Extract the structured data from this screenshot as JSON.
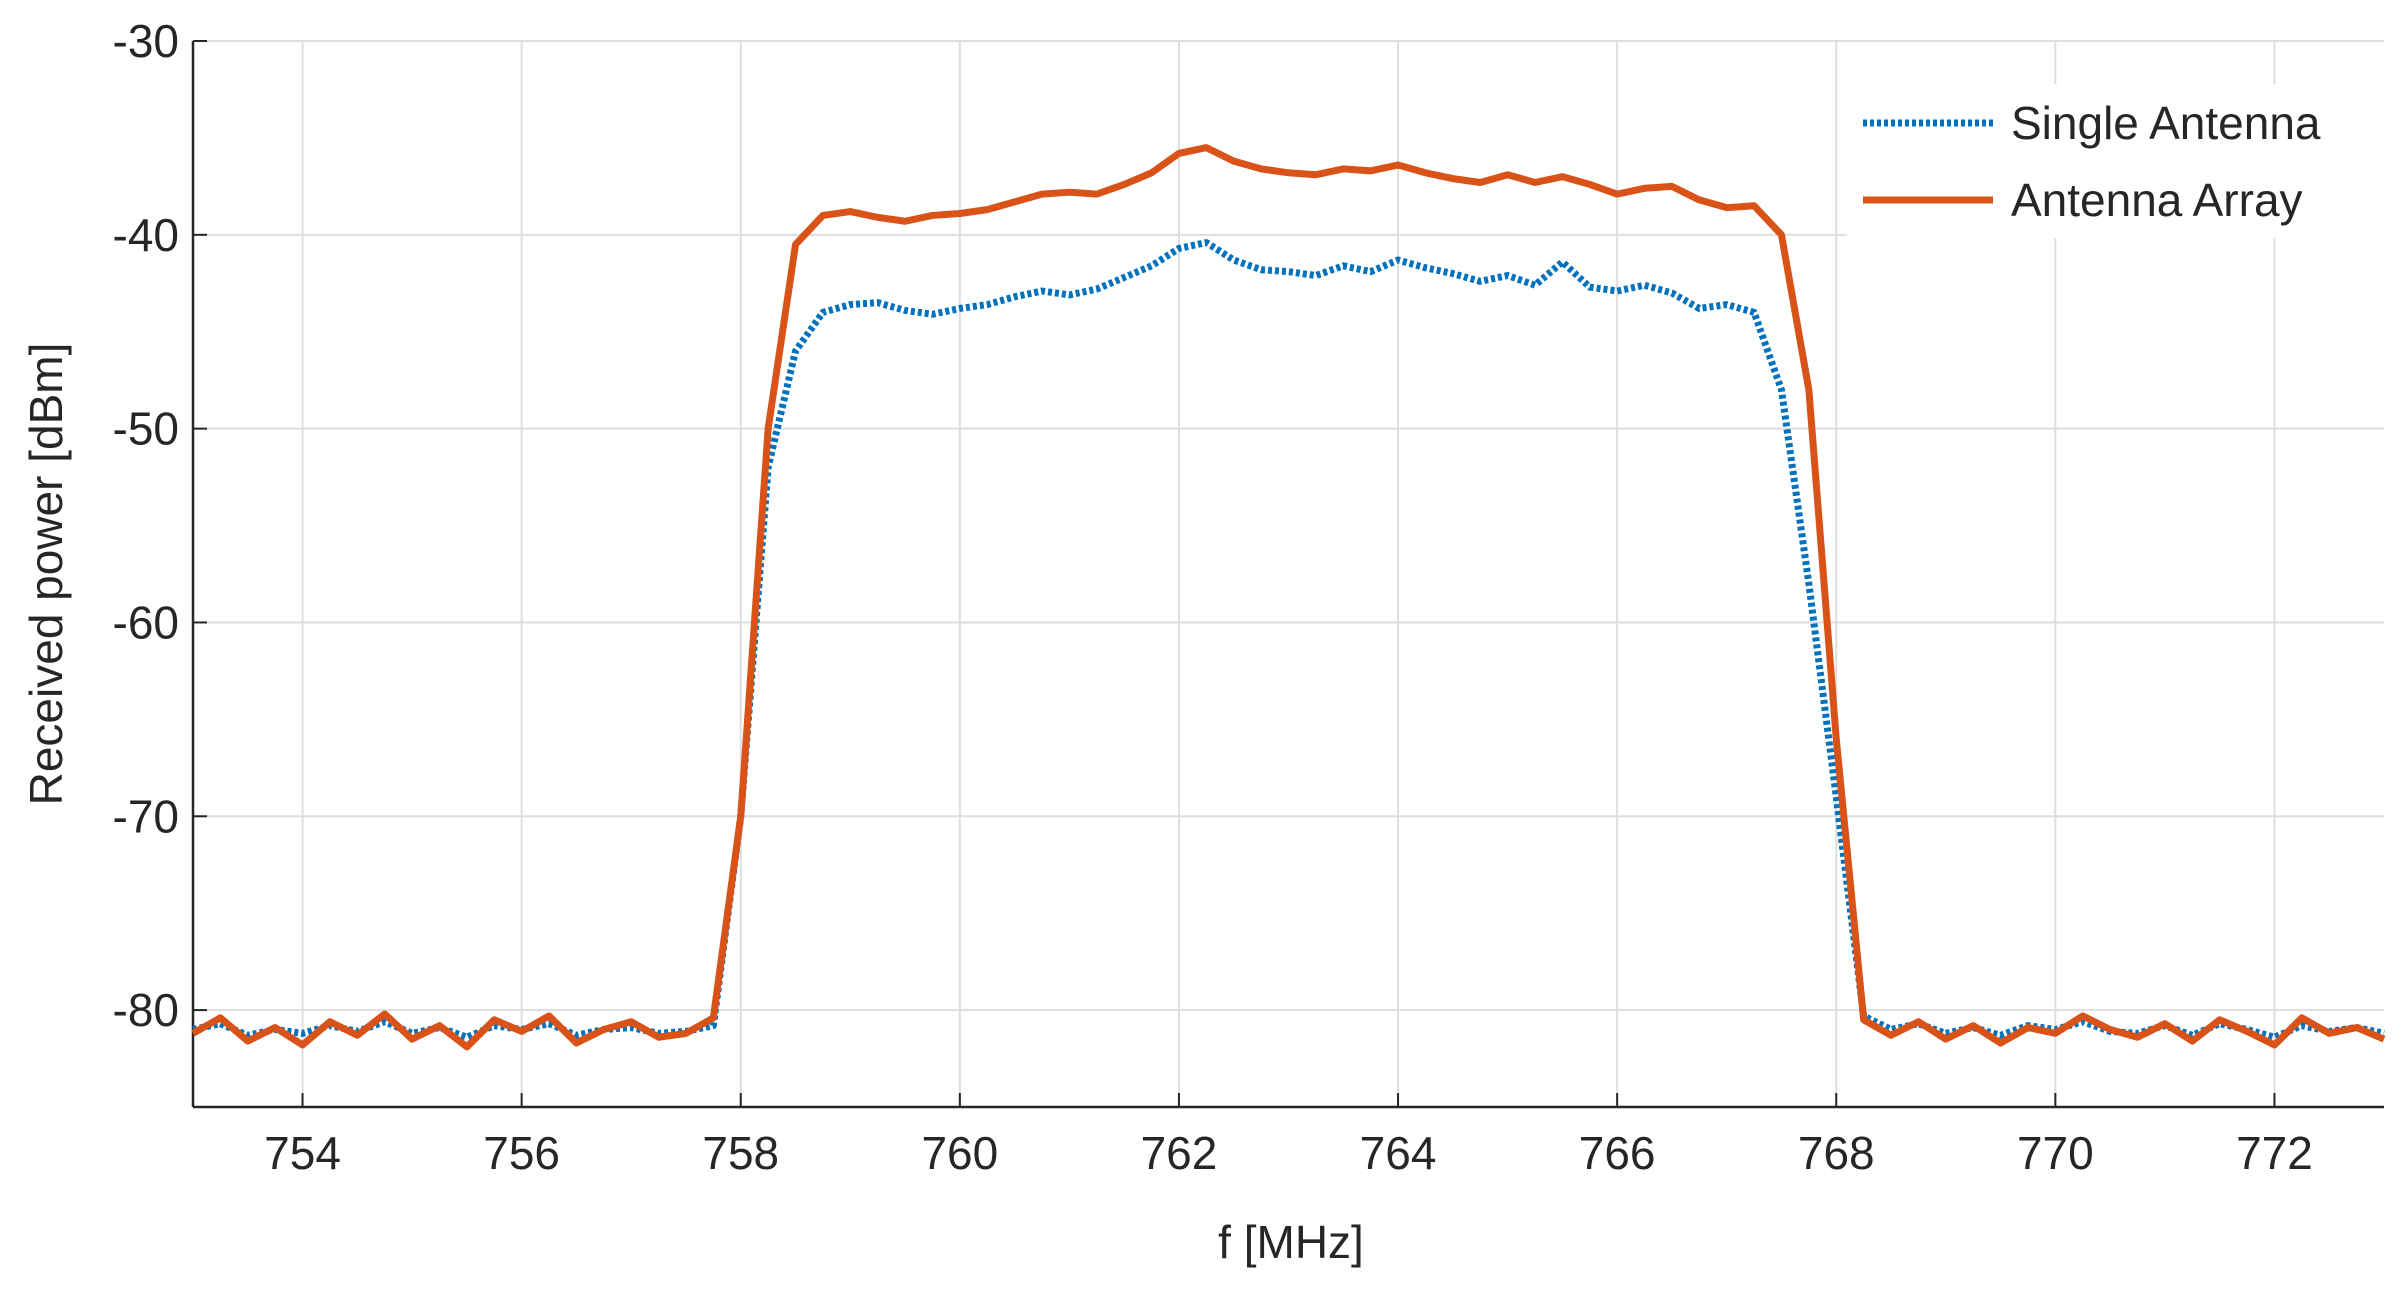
{
  "chart_data": {
    "type": "line",
    "xlabel": "f [MHz]",
    "ylabel": "Received power [dBm]",
    "x": [
      753,
      753.25,
      753.5,
      753.75,
      754,
      754.25,
      754.5,
      754.75,
      755,
      755.25,
      755.5,
      755.75,
      756,
      756.25,
      756.5,
      756.75,
      757,
      757.25,
      757.5,
      757.75,
      758,
      758.25,
      758.5,
      758.75,
      759,
      759.25,
      759.5,
      759.75,
      760,
      760.25,
      760.5,
      760.75,
      761,
      761.25,
      761.5,
      761.75,
      762,
      762.25,
      762.5,
      762.75,
      763,
      763.25,
      763.5,
      763.75,
      764,
      764.25,
      764.5,
      764.75,
      765,
      765.25,
      765.5,
      765.75,
      766,
      766.25,
      766.5,
      766.75,
      767,
      767.25,
      767.5,
      767.75,
      768,
      768.25,
      768.5,
      768.75,
      769,
      769.25,
      769.5,
      769.75,
      770,
      770.25,
      770.5,
      770.75,
      771,
      771.25,
      771.5,
      771.75,
      772,
      772.25,
      772.5,
      772.75,
      773
    ],
    "series": [
      {
        "name": "Single Antenna",
        "color": "#0072bd",
        "dash": "dotted",
        "values": [
          -81.0,
          -80.7,
          -81.3,
          -81.0,
          -81.2,
          -80.8,
          -81.1,
          -80.6,
          -81.2,
          -80.9,
          -81.4,
          -80.8,
          -81.0,
          -80.7,
          -81.3,
          -81.0,
          -80.9,
          -81.2,
          -81.1,
          -80.8,
          -70,
          -52,
          -46,
          -44,
          -43.6,
          -43.5,
          -43.9,
          -44.1,
          -43.8,
          -43.6,
          -43.2,
          -42.9,
          -43.1,
          -42.8,
          -42.2,
          -41.6,
          -40.7,
          -40.4,
          -41.3,
          -41.8,
          -41.9,
          -42.1,
          -41.6,
          -41.9,
          -41.3,
          -41.7,
          -42.0,
          -42.4,
          -42.1,
          -42.6,
          -41.4,
          -42.7,
          -42.9,
          -42.6,
          -43.0,
          -43.8,
          -43.6,
          -44.0,
          -48,
          -58,
          -69,
          -80.3,
          -81.0,
          -80.7,
          -81.2,
          -80.9,
          -81.3,
          -80.8,
          -81.0,
          -80.6,
          -81.1,
          -81.2,
          -80.8,
          -81.3,
          -80.7,
          -81.0,
          -81.4,
          -80.8,
          -81.1,
          -80.9,
          -81.2
        ]
      },
      {
        "name": "Antenna Array",
        "color": "#d95319",
        "dash": "solid",
        "values": [
          -81.2,
          -80.4,
          -81.6,
          -80.9,
          -81.8,
          -80.6,
          -81.3,
          -80.2,
          -81.5,
          -80.8,
          -81.9,
          -80.5,
          -81.1,
          -80.3,
          -81.7,
          -81.0,
          -80.6,
          -81.4,
          -81.2,
          -80.4,
          -70,
          -50,
          -40.5,
          -39,
          -38.8,
          -39.1,
          -39.3,
          -39.0,
          -38.9,
          -38.7,
          -38.3,
          -37.9,
          -37.8,
          -37.9,
          -37.4,
          -36.8,
          -35.8,
          -35.5,
          -36.2,
          -36.6,
          -36.8,
          -36.9,
          -36.6,
          -36.7,
          -36.4,
          -36.8,
          -37.1,
          -37.3,
          -36.9,
          -37.3,
          -37.0,
          -37.4,
          -37.9,
          -37.6,
          -37.5,
          -38.2,
          -38.6,
          -38.5,
          -40.0,
          -48,
          -66,
          -80.5,
          -81.3,
          -80.6,
          -81.5,
          -80.8,
          -81.7,
          -80.9,
          -81.2,
          -80.3,
          -81.0,
          -81.4,
          -80.7,
          -81.6,
          -80.5,
          -81.1,
          -81.8,
          -80.4,
          -81.2,
          -80.9,
          -81.5
        ]
      }
    ],
    "xlim": [
      753,
      773
    ],
    "xticks": [
      754,
      756,
      758,
      760,
      762,
      764,
      766,
      768,
      770,
      772
    ],
    "ylim": [
      -85,
      -30
    ],
    "yticks": [
      -80,
      -70,
      -60,
      -50,
      -40,
      -30
    ],
    "grid": true,
    "legend": "upper right"
  }
}
